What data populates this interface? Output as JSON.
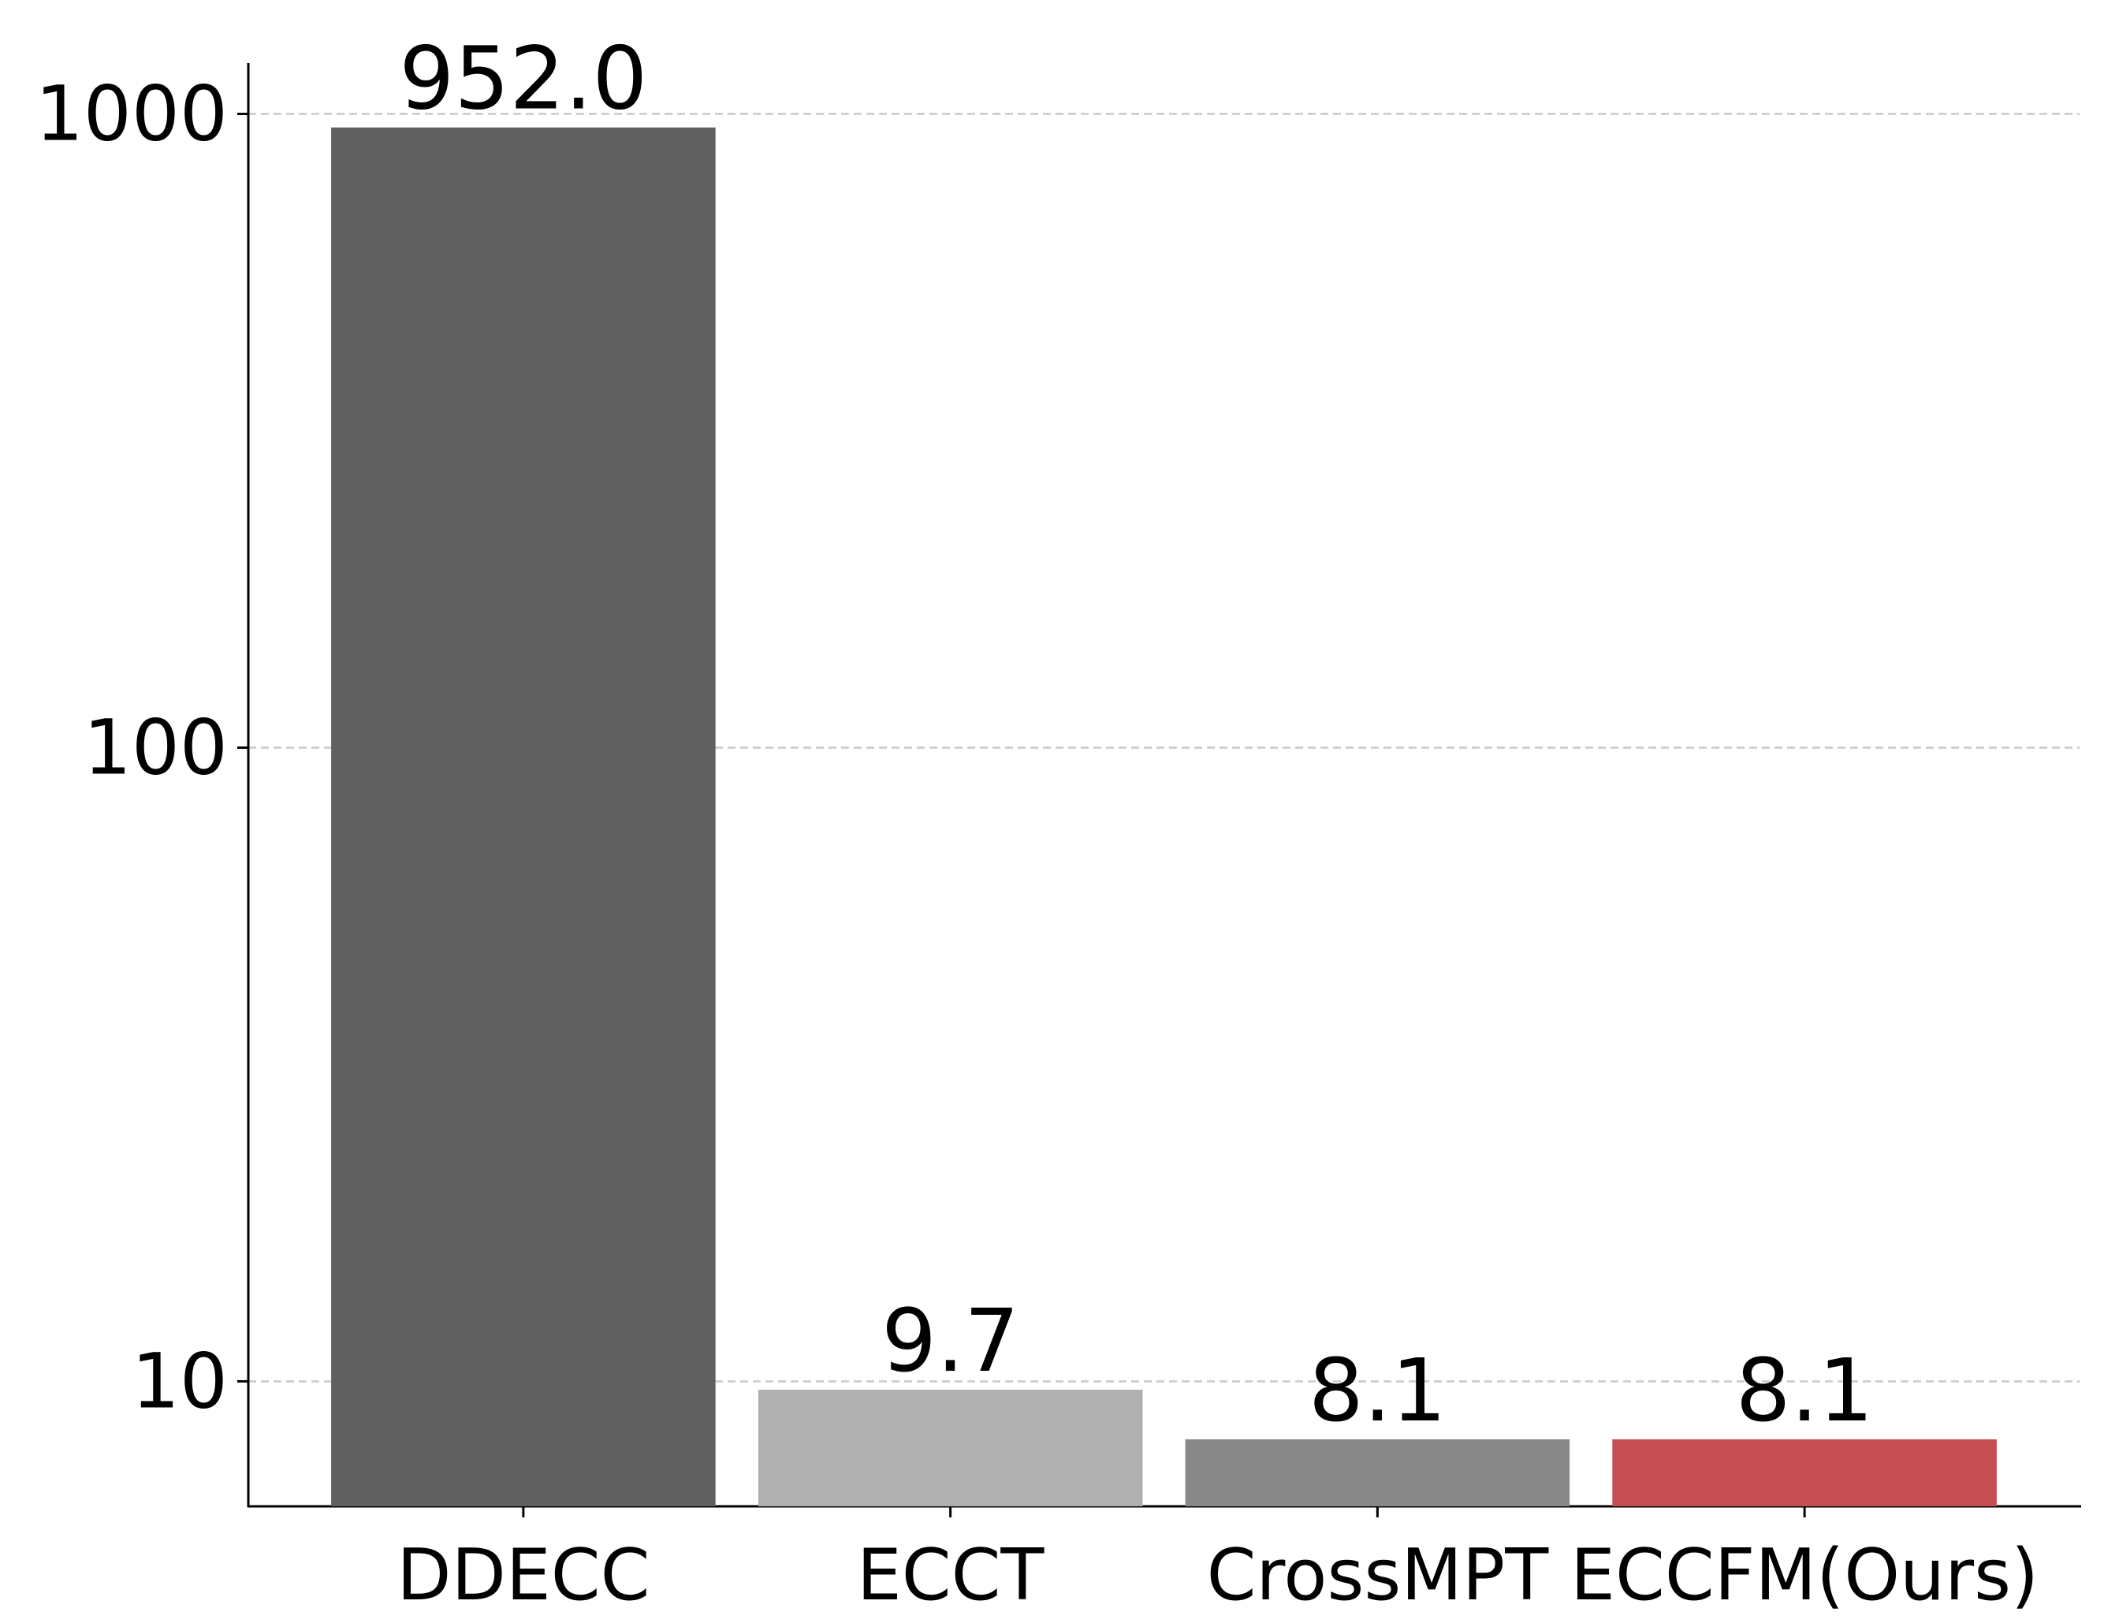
{
  "chart_data": {
    "type": "bar",
    "categories": [
      "DDECC",
      "ECCT",
      "CrossMPT",
      "ECCFM(Ours)"
    ],
    "values": [
      952.0,
      9.7,
      8.1,
      8.1
    ],
    "value_labels": [
      "952.0",
      "9.7",
      "8.1",
      "8.1"
    ],
    "colors": [
      "#606060",
      "#b0b0b0",
      "#888888",
      "#c44e52"
    ],
    "log_scale": true,
    "ylim": [
      6.35,
      1203
    ],
    "yticks": [
      10,
      100,
      1000
    ],
    "grid": true
  }
}
